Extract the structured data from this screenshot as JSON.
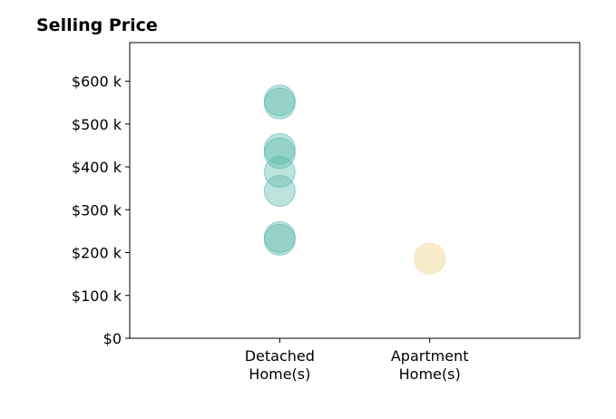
{
  "chart_data": {
    "type": "scatter",
    "title": "Selling Price",
    "xlabel": "",
    "ylabel": "",
    "categories": [
      "Detached\nHome(s)",
      "Apartment\nHome(s)"
    ],
    "x_range": [
      -1,
      2
    ],
    "ylim": [
      0,
      690000
    ],
    "y_ticks": [
      {
        "value": 0,
        "label": "$0"
      },
      {
        "value": 100000,
        "label": "$100 k"
      },
      {
        "value": 200000,
        "label": "$200 k"
      },
      {
        "value": 300000,
        "label": "$300 k"
      },
      {
        "value": 400000,
        "label": "$400 k"
      },
      {
        "value": 500000,
        "label": "$500 k"
      },
      {
        "value": 600000,
        "label": "$600 k"
      }
    ],
    "grid": false,
    "legend": "none",
    "series": [
      {
        "category": "Detached\nHome(s)",
        "color": "#5bb8ab",
        "opacity": 0.4,
        "values": [
          555000,
          548000,
          442000,
          432000,
          388000,
          344000,
          236000,
          230000
        ]
      },
      {
        "category": "Apartment\nHome(s)",
        "color": "#f3dfa9",
        "opacity": 0.6,
        "values": [
          186000
        ]
      }
    ]
  }
}
